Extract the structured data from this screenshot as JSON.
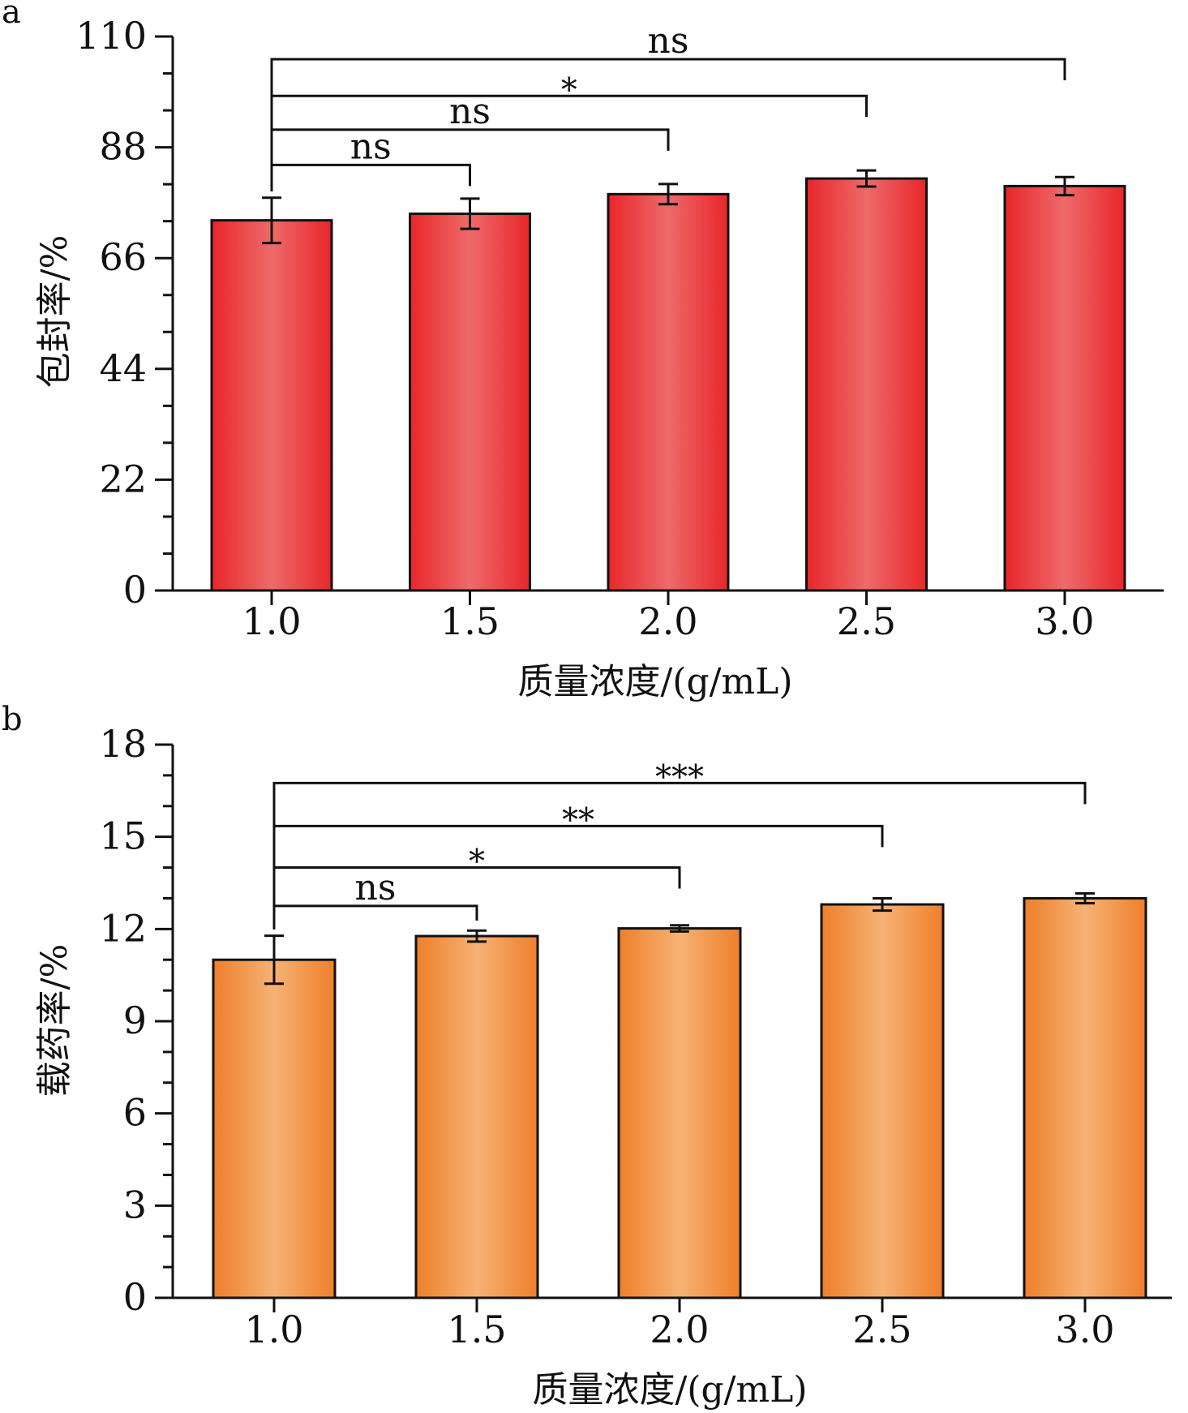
{
  "chart_data": [
    {
      "panel_label": "a",
      "type": "bar",
      "categories": [
        "1.0",
        "1.5",
        "2.0",
        "2.5",
        "3.0"
      ],
      "values": [
        73.5,
        74.8,
        78.7,
        81.8,
        80.3
      ],
      "errors": [
        4.5,
        3.0,
        2.0,
        1.6,
        1.8
      ],
      "xlabel": "质量浓度/(g/mL)",
      "ylabel": "包封率/%",
      "ylim": [
        0,
        110
      ],
      "yticks": [
        "0",
        "22",
        "44",
        "66",
        "88",
        "110"
      ],
      "minor_ticks_per_interval": 2,
      "bar_color": "#e8262a",
      "bar_highlight": "#ee6a6a",
      "significance": [
        {
          "from": 0,
          "to": 1,
          "label": "ns",
          "y": 84.5
        },
        {
          "from": 0,
          "to": 2,
          "label": "ns",
          "y": 91.5
        },
        {
          "from": 0,
          "to": 3,
          "label": "*",
          "y": 98.2
        },
        {
          "from": 0,
          "to": 4,
          "label": "ns",
          "y": 105.5
        }
      ]
    },
    {
      "panel_label": "b",
      "type": "bar",
      "categories": [
        "1.0",
        "1.5",
        "2.0",
        "2.5",
        "3.0"
      ],
      "values": [
        11.0,
        11.77,
        12.02,
        12.8,
        13.0
      ],
      "errors": [
        0.78,
        0.18,
        0.1,
        0.2,
        0.16
      ],
      "xlabel": "质量浓度/(g/mL)",
      "ylabel": "载药率/%",
      "ylim": [
        0,
        18
      ],
      "yticks": [
        "0",
        "3",
        "6",
        "9",
        "12",
        "15",
        "18"
      ],
      "minor_ticks_per_interval": 2,
      "bar_color": "#ee7f2b",
      "bar_highlight": "#f6b274",
      "significance": [
        {
          "from": 0,
          "to": 1,
          "label": "ns",
          "y": 12.75
        },
        {
          "from": 0,
          "to": 2,
          "label": "*",
          "y": 14.0
        },
        {
          "from": 0,
          "to": 3,
          "label": "**",
          "y": 15.35
        },
        {
          "from": 0,
          "to": 4,
          "label": "***",
          "y": 16.75
        }
      ]
    }
  ]
}
